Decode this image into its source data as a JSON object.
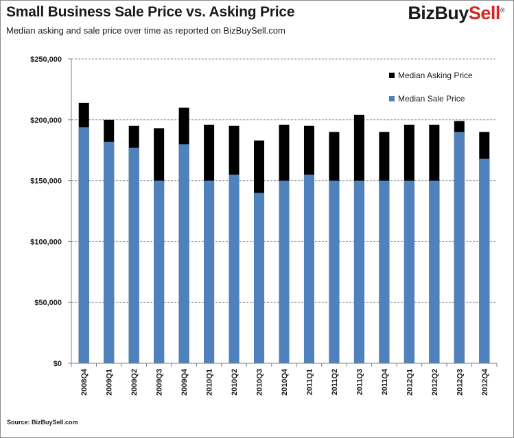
{
  "header": {
    "title": "Small Business Sale Price vs. Asking Price",
    "subtitle": "Median asking and sale price over time as reported  on  BizBuySell.com",
    "logo_text": "BizBuySell"
  },
  "footer": {
    "source": "Source: BizBuySell.com"
  },
  "colors": {
    "asking": "#000000",
    "sale": "#4f81bd",
    "grid": "#8c8c8c",
    "logo_accent": "#d7261e"
  },
  "chart_data": {
    "type": "bar",
    "stacked_overlay": true,
    "title": "Small Business Sale Price vs. Asking Price",
    "subtitle": "Median asking and sale price over time as reported  on  BizBuySell.com",
    "xlabel": "",
    "ylabel": "",
    "ylim": [
      0,
      250000
    ],
    "yticks": [
      0,
      50000,
      100000,
      150000,
      200000,
      250000
    ],
    "ytick_labels": [
      "$0",
      "$50,000",
      "$100,000",
      "$150,000",
      "$200,000",
      "$250,000"
    ],
    "grid": true,
    "legend_position": "top-right",
    "categories": [
      "2008Q4",
      "2009Q1",
      "2009Q2",
      "2009Q3",
      "2009Q4",
      "2010Q1",
      "2010Q2",
      "2010Q3",
      "2010Q4",
      "2011Q1",
      "2011Q2",
      "2011Q3",
      "2011Q4",
      "2012Q1",
      "2012Q2",
      "2012Q3",
      "2012Q4"
    ],
    "series": [
      {
        "name": "Median Asking Price",
        "color": "#000000",
        "values": [
          214000,
          200000,
          195000,
          193000,
          210000,
          196000,
          195000,
          183000,
          196000,
          195000,
          190000,
          204000,
          190000,
          196000,
          196000,
          199000,
          190000
        ]
      },
      {
        "name": "Median Sale Price",
        "color": "#4f81bd",
        "values": [
          194000,
          182000,
          177000,
          150000,
          180000,
          150000,
          155000,
          140000,
          150000,
          155000,
          150000,
          150000,
          150000,
          150000,
          150000,
          190000,
          168000
        ]
      }
    ]
  }
}
